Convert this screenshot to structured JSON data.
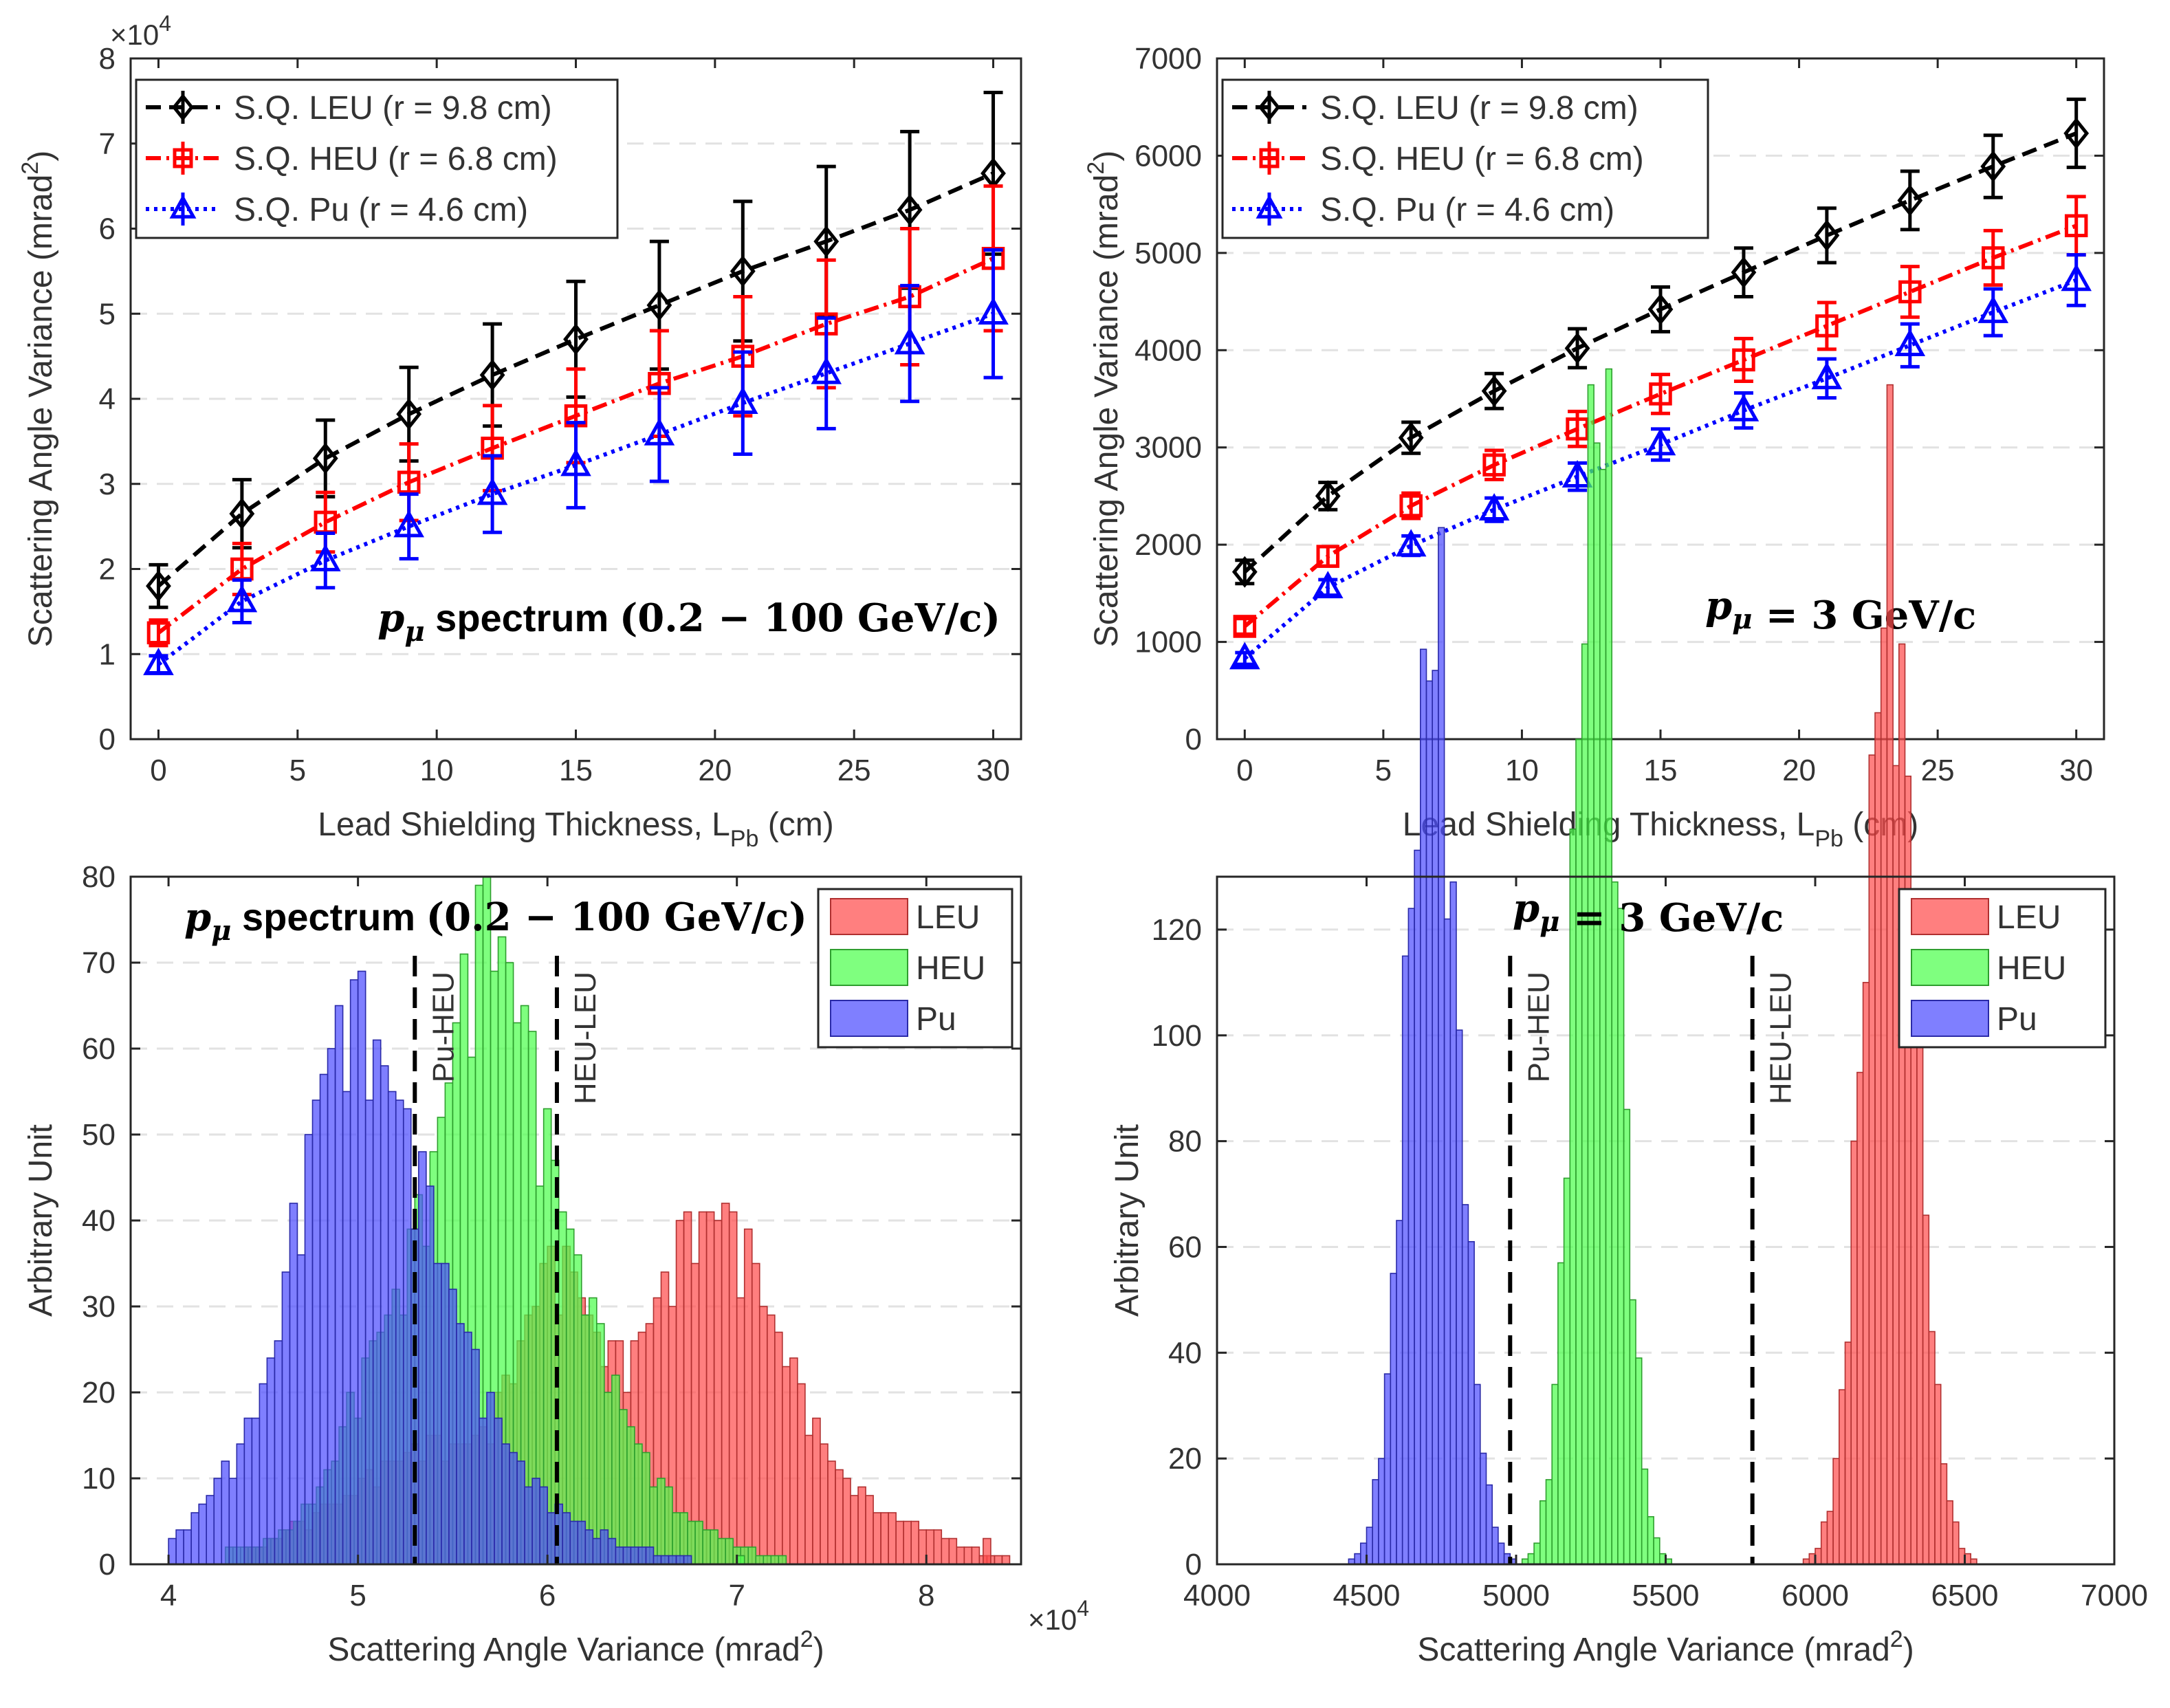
{
  "chart_data": [
    {
      "type": "line",
      "panel": "top-left",
      "annotation": {
        "p": "p",
        "sub": "μ",
        "word": " spectrum ",
        "range": "(0.2 − 100 GeV/c)"
      },
      "xlabel": {
        "main": "Lead Shielding Thickness, L",
        "sub": "Pb",
        "tail": " (cm)"
      },
      "ylabel": {
        "main": "Scattering Angle Variance (mrad",
        "sup": "2",
        "tail": ")"
      },
      "exponent": {
        "base": "×10",
        "power": "4"
      },
      "xlim": [
        -1,
        31
      ],
      "ylim": [
        0,
        8
      ],
      "xticks": [
        0,
        5,
        10,
        15,
        20,
        25,
        30
      ],
      "yticks": [
        0,
        1,
        2,
        3,
        4,
        5,
        6,
        7,
        8
      ],
      "x": [
        0,
        3,
        6,
        9,
        12,
        15,
        18,
        21,
        24,
        27,
        30
      ],
      "legend_position": "top-left",
      "series": [
        {
          "name": "S.Q. LEU (r = 9.8 cm)",
          "color": "#000000",
          "marker": "diamond",
          "dash": "22,12",
          "values": [
            1.8,
            2.65,
            3.3,
            3.82,
            4.28,
            4.7,
            5.1,
            5.5,
            5.85,
            6.22,
            6.65
          ],
          "errors": [
            0.25,
            0.4,
            0.45,
            0.55,
            0.6,
            0.68,
            0.75,
            0.82,
            0.88,
            0.92,
            0.95
          ]
        },
        {
          "name": "S.Q. HEU (r = 6.8 cm)",
          "color": "#ff0000",
          "marker": "square",
          "dash": "22,8,4,8",
          "values": [
            1.25,
            2.0,
            2.55,
            3.02,
            3.42,
            3.8,
            4.18,
            4.5,
            4.88,
            5.2,
            5.65
          ],
          "errors": [
            0.15,
            0.3,
            0.35,
            0.45,
            0.5,
            0.55,
            0.62,
            0.7,
            0.75,
            0.8,
            0.85
          ]
        },
        {
          "name": "S.Q. Pu    (r = 4.6 cm)",
          "color": "#0000ff",
          "marker": "triangle",
          "dash": "5,7",
          "values": [
            0.88,
            1.62,
            2.1,
            2.5,
            2.88,
            3.22,
            3.58,
            3.95,
            4.3,
            4.65,
            5.0
          ],
          "errors": [
            0.1,
            0.25,
            0.32,
            0.38,
            0.45,
            0.5,
            0.55,
            0.6,
            0.65,
            0.68,
            0.75
          ]
        }
      ]
    },
    {
      "type": "line",
      "panel": "top-right",
      "annotation": {
        "p": "p",
        "sub": "μ",
        "word": "",
        "range": " = 3 GeV/c"
      },
      "xlabel": {
        "main": "Lead Shielding Thickness, L",
        "sub": "Pb",
        "tail": " (cm)"
      },
      "ylabel": {
        "main": "Scattering Angle Variance (mrad",
        "sup": "2",
        "tail": ")"
      },
      "xlim": [
        -1,
        31
      ],
      "ylim": [
        0,
        7000
      ],
      "xticks": [
        0,
        5,
        10,
        15,
        20,
        25,
        30
      ],
      "yticks": [
        0,
        1000,
        2000,
        3000,
        4000,
        5000,
        6000,
        7000
      ],
      "x": [
        0,
        3,
        6,
        9,
        12,
        15,
        18,
        21,
        24,
        27,
        30
      ],
      "legend_position": "top-left",
      "series": [
        {
          "name": "S.Q. LEU (r = 9.8 cm)",
          "color": "#000000",
          "marker": "diamond",
          "dash": "22,12",
          "values": [
            1720,
            2500,
            3100,
            3580,
            4020,
            4420,
            4800,
            5180,
            5540,
            5890,
            6230
          ],
          "errors": [
            120,
            140,
            160,
            180,
            200,
            230,
            250,
            280,
            300,
            320,
            350
          ]
        },
        {
          "name": "S.Q. HEU (r = 6.8 cm)",
          "color": "#ff0000",
          "marker": "square",
          "dash": "22,8,4,8",
          "values": [
            1160,
            1880,
            2400,
            2820,
            3190,
            3550,
            3900,
            4250,
            4600,
            4950,
            5280
          ],
          "errors": [
            80,
            100,
            130,
            150,
            180,
            200,
            220,
            240,
            260,
            280,
            300
          ]
        },
        {
          "name": "S.Q. Pu    (r = 4.6 cm)",
          "color": "#0000ff",
          "marker": "triangle",
          "dash": "5,7",
          "values": [
            830,
            1560,
            1990,
            2360,
            2700,
            3030,
            3380,
            3710,
            4050,
            4390,
            4720
          ],
          "errors": [
            60,
            80,
            100,
            120,
            140,
            160,
            180,
            200,
            220,
            240,
            260
          ]
        }
      ]
    },
    {
      "type": "histogram",
      "panel": "bottom-left",
      "annotation": {
        "p": "p",
        "sub": "μ",
        "word": " spectrum ",
        "range": "(0.2 − 100 GeV/c)"
      },
      "xlabel": {
        "main": "Scattering Angle Variance (mrad",
        "sup": "2",
        "tail": ")"
      },
      "ylabel": "Arbitrary Unit",
      "exponent": {
        "base": "×10",
        "power": "4"
      },
      "xlim": [
        3.8,
        8.5
      ],
      "ylim": [
        0,
        80
      ],
      "xticks": [
        4,
        5,
        6,
        7,
        8
      ],
      "yticks": [
        0,
        10,
        20,
        30,
        40,
        50,
        60,
        70,
        80
      ],
      "legend_position": "top-right",
      "thresholds": [
        {
          "x": 5.3,
          "label": "Pu-HEU"
        },
        {
          "x": 6.05,
          "label": "HEU-LEU"
        }
      ],
      "series": [
        {
          "name": "LEU",
          "color": "#ff4d4d",
          "edge": "#b03030",
          "start": 4.4,
          "width": 0.04,
          "total": 1720,
          "shape": [
            [
              4.7,
              0.2,
              3
            ],
            [
              5.4,
              0.4,
              20
            ],
            [
              6.05,
              0.2,
              42
            ],
            [
              6.85,
              0.35,
              58
            ],
            [
              7.5,
              0.4,
              8
            ],
            [
              8.0,
              0.2,
              2
            ]
          ],
          "outliers": [
            [
              8.3,
              3
            ]
          ]
        },
        {
          "name": "HEU",
          "color": "#4dff4d",
          "edge": "#2e9e2e",
          "start": 4.3,
          "width": 0.04,
          "total": 1850,
          "shape": [
            [
              4.6,
              0.3,
              3
            ],
            [
              5.2,
              0.25,
              35
            ],
            [
              5.65,
              0.2,
              62
            ],
            [
              5.95,
              0.3,
              48
            ],
            [
              6.3,
              0.4,
              8
            ],
            [
              6.7,
              0.3,
              2
            ]
          ],
          "outliers": [
            [
              7.0,
              1
            ]
          ]
        },
        {
          "name": "Pu",
          "color": "#4d4dff",
          "edge": "#2a2aa8",
          "start": 4.0,
          "width": 0.04,
          "total": 1600,
          "shape": [
            [
              4.2,
              0.15,
              3
            ],
            [
              4.5,
              0.25,
              20
            ],
            [
              4.85,
              0.2,
              58
            ],
            [
              5.1,
              0.25,
              48
            ],
            [
              5.35,
              0.3,
              40
            ],
            [
              5.8,
              0.35,
              10
            ],
            [
              6.3,
              0.3,
              2
            ]
          ],
          "outliers": []
        }
      ]
    },
    {
      "type": "histogram",
      "panel": "bottom-right",
      "annotation": {
        "p": "p",
        "sub": "μ",
        "word": "",
        "range": " = 3 GeV/c"
      },
      "xlabel": {
        "main": "Scattering Angle Variance (mrad",
        "sup": "2",
        "tail": ")"
      },
      "ylabel": "Arbitrary Unit",
      "xlim": [
        4000,
        7000
      ],
      "ylim": [
        0,
        130
      ],
      "xticks": [
        4000,
        4500,
        5000,
        5500,
        6000,
        6500,
        7000
      ],
      "yticks": [
        0,
        20,
        40,
        60,
        80,
        100,
        120
      ],
      "legend_position": "top-right",
      "thresholds": [
        {
          "x": 4980,
          "label": "Pu-HEU"
        },
        {
          "x": 5790,
          "label": "HEU-LEU"
        }
      ],
      "series": [
        {
          "name": "LEU",
          "color": "#ff4d4d",
          "edge": "#b03030",
          "start": 5900,
          "width": 20,
          "total": 2000,
          "peak": 6250,
          "sigma": 85
        },
        {
          "name": "HEU",
          "color": "#4dff4d",
          "edge": "#2e9e2e",
          "start": 4960,
          "width": 20,
          "total": 2000,
          "peak": 5270,
          "sigma": 72
        },
        {
          "name": "Pu",
          "color": "#4d4dff",
          "edge": "#2a2aa8",
          "start": 4400,
          "width": 20,
          "total": 1850,
          "peak": 4720,
          "sigma": 84
        }
      ]
    }
  ]
}
